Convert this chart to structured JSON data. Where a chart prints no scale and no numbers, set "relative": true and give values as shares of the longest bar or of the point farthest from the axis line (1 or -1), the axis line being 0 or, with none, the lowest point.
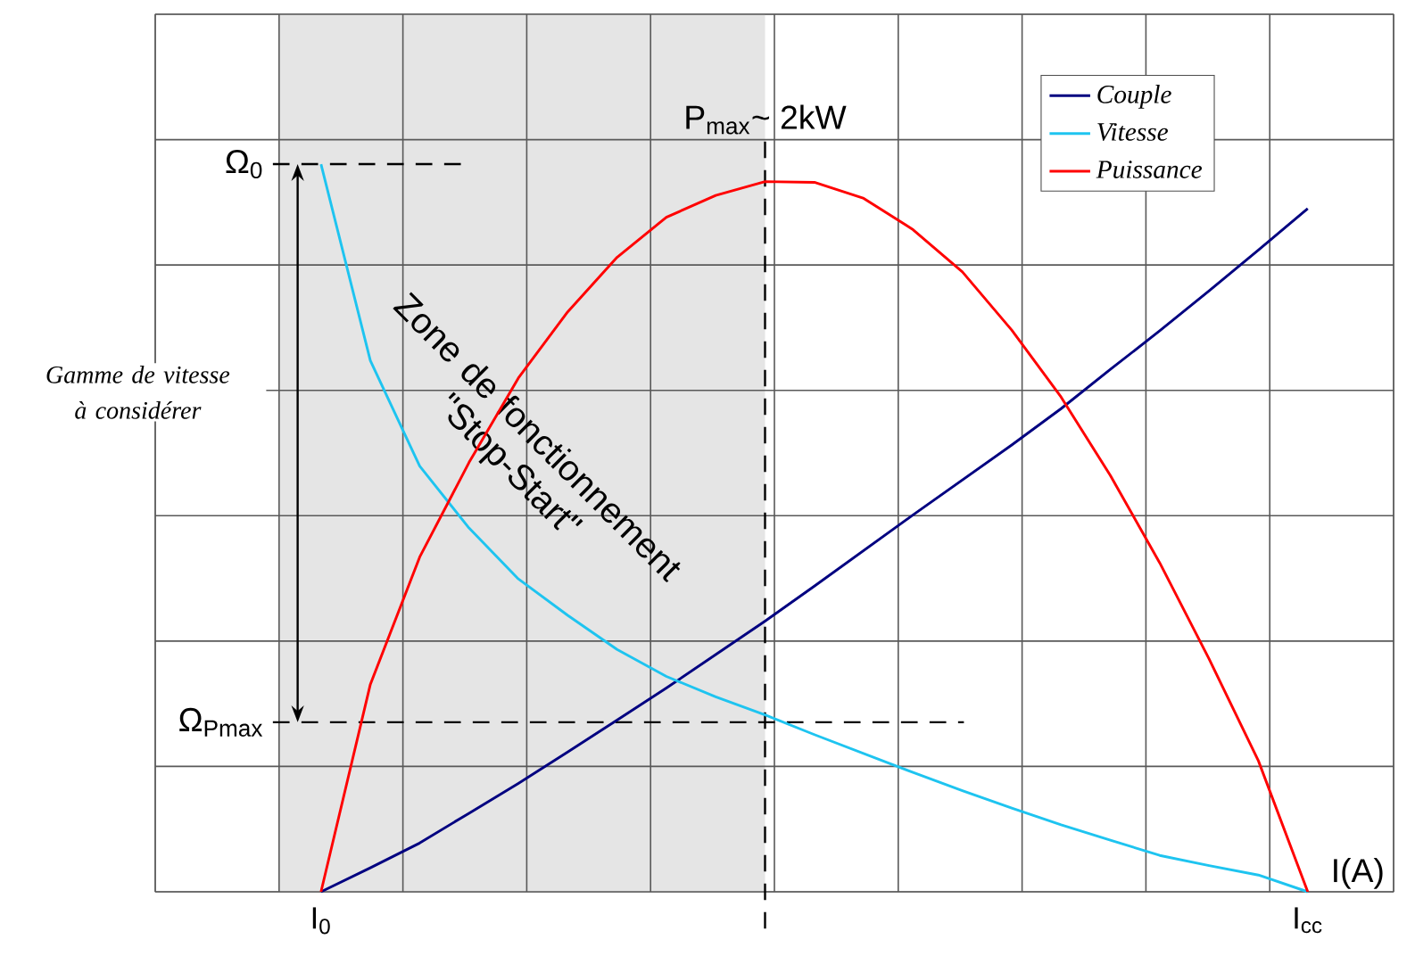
{
  "chart_data": {
    "type": "line",
    "relative": true,
    "categories": [
      "I$_{0}$",
      null,
      null,
      null,
      null,
      null,
      null,
      null,
      null,
      null,
      null,
      null,
      null,
      null,
      null,
      null,
      null,
      null,
      null,
      null,
      "I$_{cc}$"
    ],
    "xlabel": "I(A)",
    "series": [
      {
        "name": "Couple",
        "color": "#000080",
        "values": [
          0,
          0.033,
          0.067,
          0.108,
          0.149,
          0.192,
          0.236,
          0.28,
          0.326,
          0.372,
          0.42,
          0.469,
          0.518,
          0.566,
          0.614,
          0.664,
          0.718,
          0.771,
          0.826,
          0.882,
          0.939
        ]
      },
      {
        "name": "Vitesse",
        "color": "#1ec4f0",
        "values": [
          1,
          0.73,
          0.585,
          0.5,
          0.43,
          0.38,
          0.333,
          0.296,
          0.268,
          0.243,
          0.216,
          0.19,
          0.164,
          0.139,
          0.115,
          0.092,
          0.071,
          0.05,
          0.036,
          0.023,
          0
        ]
      },
      {
        "name": "Puissance",
        "color": "#ff0000",
        "values": [
          0,
          0.285,
          0.46,
          0.59,
          0.706,
          0.797,
          0.872,
          0.927,
          0.957,
          0.976,
          0.975,
          0.953,
          0.91,
          0.852,
          0.772,
          0.68,
          0.572,
          0.452,
          0.32,
          0.18,
          0
        ]
      }
    ],
    "ref_lines": [
      {
        "axis": "y",
        "value": 1,
        "label": "Ω$_{0}$",
        "line_style": "dashed"
      },
      {
        "axis": "y",
        "value": 0.233,
        "label": "Ω$_{Pmax}$",
        "line_style": "dashed"
      }
    ],
    "annotations": [
      "Gamme de vitesse à considérer",
      "Zone de fonctionnement \"Stop-Start\"",
      "P$_{max}$~ 2kW"
    ],
    "grid": true,
    "legend": "top right"
  }
}
